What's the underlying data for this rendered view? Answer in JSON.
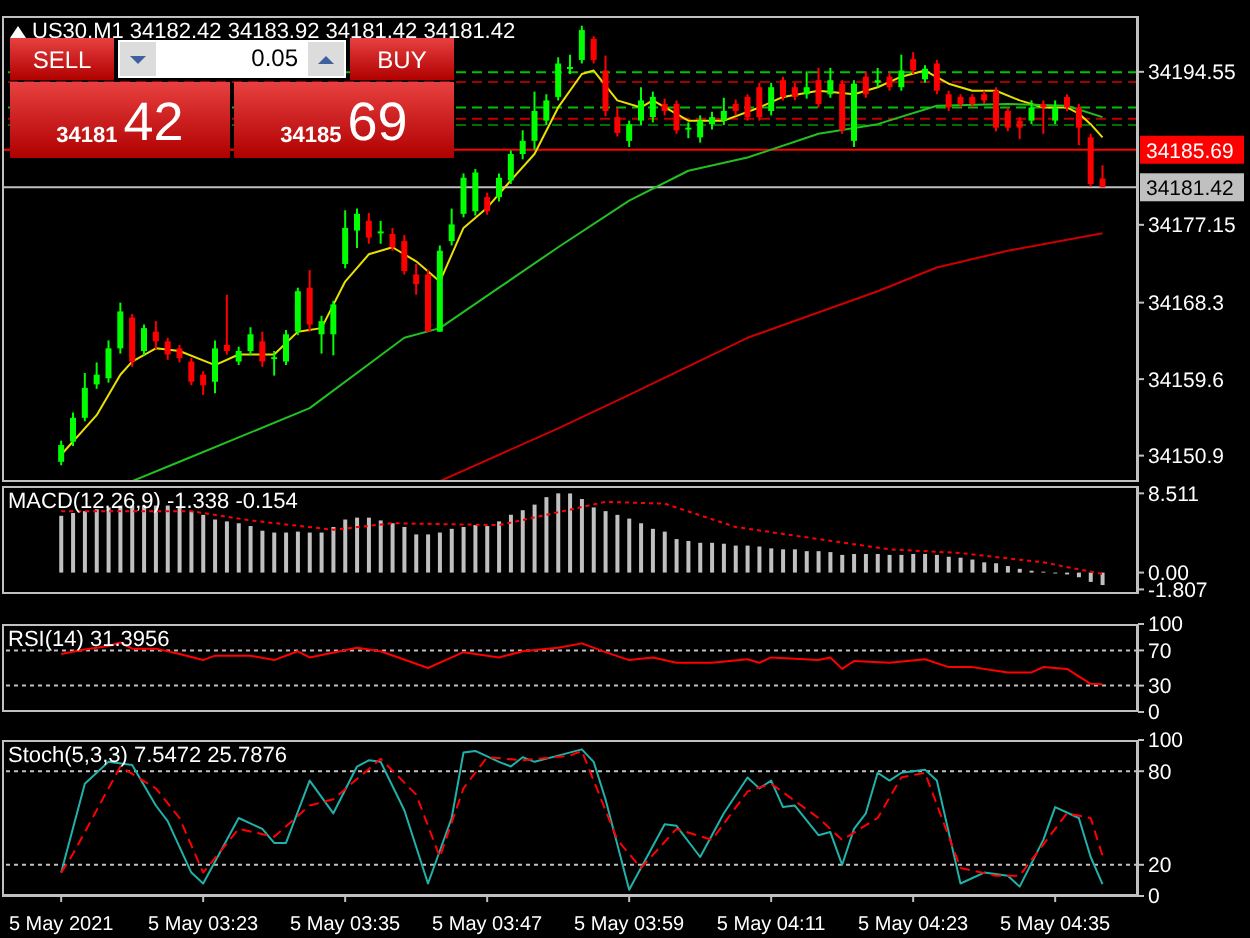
{
  "chart_data": [
    {
      "type": "candlestick",
      "title": "US30,M1 34182.42 34183.92 34181.42 34181.42",
      "x": [
        "2021-05-05T03:11",
        "2021-05-05T03:12",
        "2021-05-05T03:13",
        "2021-05-05T03:14",
        "2021-05-05T03:15",
        "2021-05-05T03:16",
        "2021-05-05T03:17",
        "2021-05-05T03:18",
        "2021-05-05T03:19",
        "2021-05-05T03:20",
        "2021-05-05T03:21",
        "2021-05-05T03:22",
        "2021-05-05T03:23",
        "2021-05-05T03:24",
        "2021-05-05T03:25",
        "2021-05-05T03:26",
        "2021-05-05T03:27",
        "2021-05-05T03:28",
        "2021-05-05T03:29",
        "2021-05-05T03:30",
        "2021-05-05T03:31",
        "2021-05-05T03:32",
        "2021-05-05T03:33",
        "2021-05-05T03:34",
        "2021-05-05T03:35",
        "2021-05-05T03:36",
        "2021-05-05T03:37",
        "2021-05-05T03:38",
        "2021-05-05T03:39",
        "2021-05-05T03:40",
        "2021-05-05T03:41",
        "2021-05-05T03:42",
        "2021-05-05T03:43",
        "2021-05-05T03:44",
        "2021-05-05T03:45",
        "2021-05-05T03:46",
        "2021-05-05T03:47",
        "2021-05-05T03:48",
        "2021-05-05T03:49",
        "2021-05-05T03:50",
        "2021-05-05T03:51",
        "2021-05-05T03:52",
        "2021-05-05T03:53",
        "2021-05-05T03:54",
        "2021-05-05T03:55",
        "2021-05-05T03:56",
        "2021-05-05T03:57",
        "2021-05-05T03:58",
        "2021-05-05T03:59",
        "2021-05-05T04:00",
        "2021-05-05T04:01",
        "2021-05-05T04:02",
        "2021-05-05T04:03",
        "2021-05-05T04:04",
        "2021-05-05T04:05",
        "2021-05-05T04:06",
        "2021-05-05T04:07",
        "2021-05-05T04:08",
        "2021-05-05T04:09",
        "2021-05-05T04:10",
        "2021-05-05T04:11",
        "2021-05-05T04:12",
        "2021-05-05T04:13",
        "2021-05-05T04:14",
        "2021-05-05T04:15",
        "2021-05-05T04:16",
        "2021-05-05T04:17",
        "2021-05-05T04:18",
        "2021-05-05T04:19",
        "2021-05-05T04:20",
        "2021-05-05T04:21",
        "2021-05-05T04:22",
        "2021-05-05T04:23",
        "2021-05-05T04:24",
        "2021-05-05T04:25",
        "2021-05-05T04:26",
        "2021-05-05T04:27",
        "2021-05-05T04:28",
        "2021-05-05T04:29",
        "2021-05-05T04:30",
        "2021-05-05T04:31",
        "2021-05-05T04:32",
        "2021-05-05T04:33",
        "2021-05-05T04:34",
        "2021-05-05T04:35",
        "2021-05-05T04:36",
        "2021-05-05T04:37",
        "2021-05-05T04:38",
        "2021-05-05T04:39"
      ],
      "ohlc": [
        [
          34150.2,
          34152.6,
          34149.8,
          34152.1
        ],
        [
          34152.5,
          34155.8,
          34152.0,
          34155.2
        ],
        [
          34155.2,
          34160.3,
          34154.8,
          34158.6
        ],
        [
          34159.0,
          34161.5,
          34158.5,
          34160.1
        ],
        [
          34159.7,
          34164.0,
          34159.2,
          34163.1
        ],
        [
          34163.1,
          34168.3,
          34162.5,
          34167.3
        ],
        [
          34166.6,
          34167.0,
          34161.0,
          34161.6
        ],
        [
          34162.8,
          34165.8,
          34162.3,
          34165.4
        ],
        [
          34165.0,
          34166.2,
          34163.0,
          34163.9
        ],
        [
          34163.9,
          34164.3,
          34161.8,
          34162.4
        ],
        [
          34163.1,
          34163.5,
          34161.5,
          34162.0
        ],
        [
          34161.6,
          34162.0,
          34158.9,
          34159.3
        ],
        [
          34160.1,
          34160.5,
          34157.8,
          34158.9
        ],
        [
          34159.3,
          34164.0,
          34158.0,
          34163.1
        ],
        [
          34163.5,
          34169.2,
          34162.4,
          34162.8
        ],
        [
          34161.6,
          34163.3,
          34161.2,
          34162.8
        ],
        [
          34162.8,
          34165.5,
          34162.3,
          34164.7
        ],
        [
          34163.9,
          34165.0,
          34161.0,
          34161.6
        ],
        [
          34162.0,
          34162.8,
          34160.0,
          34162.1
        ],
        [
          34161.6,
          34165.2,
          34161.2,
          34164.7
        ],
        [
          34165.0,
          34170.0,
          34164.6,
          34169.6
        ],
        [
          34170.0,
          34172.0,
          34165.0,
          34165.8
        ],
        [
          34164.7,
          34166.8,
          34162.5,
          34166.2
        ],
        [
          34164.7,
          34168.5,
          34162.3,
          34168.1
        ],
        [
          34172.7,
          34178.8,
          34172.2,
          34176.8
        ],
        [
          34176.5,
          34179.0,
          34174.5,
          34178.4
        ],
        [
          34177.6,
          34178.5,
          34175.0,
          34175.7
        ],
        [
          34176.3,
          34177.6,
          34175.0,
          34176.4
        ],
        [
          34176.1,
          34176.8,
          34174.2,
          34174.6
        ],
        [
          34175.3,
          34176.0,
          34171.5,
          34171.9
        ],
        [
          34171.5,
          34172.7,
          34169.2,
          34170.4
        ],
        [
          34171.5,
          34172.0,
          34165.0,
          34165.0
        ],
        [
          34165.0,
          34174.8,
          34165.0,
          34174.2
        ],
        [
          34175.3,
          34179.0,
          34174.8,
          34177.2
        ],
        [
          34178.4,
          34183.0,
          34178.0,
          34182.5
        ],
        [
          34178.7,
          34183.5,
          34178.2,
          34183.1
        ],
        [
          34180.3,
          34180.8,
          34178.3,
          34178.7
        ],
        [
          34180.3,
          34183.0,
          34179.8,
          34182.5
        ],
        [
          34182.2,
          34185.6,
          34181.8,
          34185.2
        ],
        [
          34185.2,
          34187.9,
          34184.6,
          34186.7
        ],
        [
          34186.7,
          34192.3,
          34185.7,
          34190.1
        ],
        [
          34189.0,
          34192.0,
          34188.5,
          34191.3
        ],
        [
          34191.7,
          34196.2,
          34191.3,
          34195.5
        ],
        [
          34195.0,
          34196.5,
          34194.3,
          34195.1
        ],
        [
          34195.9,
          34199.8,
          34195.5,
          34199.3
        ],
        [
          34198.3,
          34198.6,
          34195.5,
          34195.9
        ],
        [
          34194.7,
          34196.4,
          34189.5,
          34190.1
        ],
        [
          34189.4,
          34190.5,
          34187.2,
          34187.6
        ],
        [
          34186.7,
          34189.0,
          34186.0,
          34188.6
        ],
        [
          34189.0,
          34192.8,
          34188.5,
          34191.3
        ],
        [
          34189.4,
          34192.3,
          34188.8,
          34191.7
        ],
        [
          34190.9,
          34191.5,
          34189.6,
          34190.1
        ],
        [
          34190.9,
          34191.3,
          34187.5,
          34187.9
        ],
        [
          34188.0,
          34188.8,
          34187.0,
          34188.2
        ],
        [
          34187.1,
          34189.6,
          34186.5,
          34189.0
        ],
        [
          34188.6,
          34190.0,
          34188.0,
          34189.4
        ],
        [
          34189.0,
          34191.6,
          34188.5,
          34190.1
        ],
        [
          34190.9,
          34191.4,
          34189.6,
          34190.1
        ],
        [
          34191.7,
          34192.0,
          34189.0,
          34189.4
        ],
        [
          34192.8,
          34193.3,
          34189.0,
          34189.4
        ],
        [
          34190.1,
          34193.3,
          34189.6,
          34192.8
        ],
        [
          34193.6,
          34194.0,
          34191.3,
          34191.7
        ],
        [
          34192.8,
          34193.3,
          34191.3,
          34191.7
        ],
        [
          34192.0,
          34194.6,
          34191.5,
          34192.8
        ],
        [
          34193.6,
          34195.0,
          34190.5,
          34190.9
        ],
        [
          34192.0,
          34195.0,
          34191.6,
          34193.6
        ],
        [
          34193.2,
          34193.6,
          34187.5,
          34187.9
        ],
        [
          34186.7,
          34193.6,
          34186.0,
          34193.2
        ],
        [
          34194.0,
          34194.6,
          34191.6,
          34192.0
        ],
        [
          34193.3,
          34195.0,
          34192.8,
          34193.6
        ],
        [
          34194.0,
          34194.5,
          34192.4,
          34192.8
        ],
        [
          34192.8,
          34196.5,
          34192.4,
          34194.7
        ],
        [
          34196.0,
          34196.8,
          34194.3,
          34194.7
        ],
        [
          34193.7,
          34195.3,
          34193.3,
          34194.9
        ],
        [
          34195.5,
          34195.9,
          34192.0,
          34192.4
        ],
        [
          34192.0,
          34192.4,
          34190.1,
          34190.5
        ],
        [
          34191.7,
          34192.0,
          34190.5,
          34190.9
        ],
        [
          34191.7,
          34192.0,
          34190.5,
          34190.9
        ],
        [
          34192.0,
          34192.4,
          34190.9,
          34191.3
        ],
        [
          34192.4,
          34192.8,
          34187.8,
          34188.2
        ],
        [
          34190.1,
          34190.5,
          34187.8,
          34188.2
        ],
        [
          34189.0,
          34189.4,
          34186.9,
          34188.2
        ],
        [
          34189.0,
          34191.3,
          34188.6,
          34190.5
        ],
        [
          34190.9,
          34191.3,
          34187.5,
          34190.5
        ],
        [
          34189.0,
          34191.3,
          34188.6,
          34190.5
        ],
        [
          34191.7,
          34192.0,
          34190.1,
          34190.5
        ],
        [
          34190.5,
          34190.9,
          34186.2,
          34188.2
        ],
        [
          34187.1,
          34187.5,
          34181.5,
          34181.8
        ],
        [
          34182.42,
          34183.92,
          34181.42,
          34181.42
        ]
      ],
      "colors": [
        "#00ff00",
        "#00ff00",
        "#00ff00",
        "#00ff00",
        "#00ff00",
        "#00ff00",
        "#ff0000",
        "#00ff00",
        "#ff0000",
        "#ff0000",
        "#ff0000",
        "#ff0000",
        "#ff0000",
        "#00ff00",
        "#ff0000",
        "#00ff00",
        "#00ff00",
        "#ff0000",
        "#00ff00",
        "#00ff00",
        "#00ff00",
        "#ff0000",
        "#00ff00",
        "#00ff00",
        "#00ff00",
        "#00ff00",
        "#ff0000",
        "#00ff00",
        "#ff0000",
        "#ff0000",
        "#ff0000",
        "#ff0000",
        "#00ff00",
        "#00ff00",
        "#00ff00",
        "#00ff00",
        "#ff0000",
        "#00ff00",
        "#00ff00",
        "#00ff00",
        "#00ff00",
        "#00ff00",
        "#00ff00",
        "#00ff00",
        "#00ff00",
        "#ff0000",
        "#ff0000",
        "#ff0000",
        "#00ff00",
        "#00ff00",
        "#00ff00",
        "#ff0000",
        "#ff0000",
        "#00ff00",
        "#00ff00",
        "#00ff00",
        "#00ff00",
        "#ff0000",
        "#ff0000",
        "#ff0000",
        "#00ff00",
        "#ff0000",
        "#ff0000",
        "#00ff00",
        "#ff0000",
        "#00ff00",
        "#ff0000",
        "#00ff00",
        "#ff0000",
        "#00ff00",
        "#ff0000",
        "#00ff00",
        "#ff0000",
        "#00ff00",
        "#ff0000",
        "#ff0000",
        "#ff0000",
        "#ff0000",
        "#ff0000",
        "#ff0000",
        "#ff0000",
        "#ff0000",
        "#00ff00",
        "#ff0000",
        "#00ff00",
        "#ff0000",
        "#ff0000",
        "#ff0000",
        "#ff0000"
      ],
      "series": [
        {
          "type": "line",
          "color": "#e8e000",
          "x": [
            "2021-05-05T03:11",
            "2021-05-05T03:14",
            "2021-05-05T03:16",
            "2021-05-05T03:17",
            "2021-05-05T03:19",
            "2021-05-05T03:21",
            "2021-05-05T03:24",
            "2021-05-05T03:26",
            "2021-05-05T03:29",
            "2021-05-05T03:31",
            "2021-05-05T03:33",
            "2021-05-05T03:35",
            "2021-05-05T03:37",
            "2021-05-05T03:39",
            "2021-05-05T03:41",
            "2021-05-05T03:43",
            "2021-05-05T03:45",
            "2021-05-05T03:47",
            "2021-05-05T03:49",
            "2021-05-05T03:51",
            "2021-05-05T03:53",
            "2021-05-05T03:55",
            "2021-05-05T03:56",
            "2021-05-05T03:58",
            "2021-05-05T04:00",
            "2021-05-05T04:01",
            "2021-05-05T04:04",
            "2021-05-05T04:07",
            "2021-05-05T04:10",
            "2021-05-05T04:12",
            "2021-05-05T04:15",
            "2021-05-05T04:18",
            "2021-05-05T04:20",
            "2021-05-05T04:22",
            "2021-05-05T04:24",
            "2021-05-05T04:26",
            "2021-05-05T04:28",
            "2021-05-05T04:30",
            "2021-05-05T04:32",
            "2021-05-05T04:34",
            "2021-05-05T04:36",
            "2021-05-05T04:37",
            "2021-05-05T04:38",
            "2021-05-05T04:39"
          ],
          "values": [
            34151.0,
            34155.5,
            34160.1,
            34161.6,
            34163.1,
            34162.8,
            34161.2,
            34162.4,
            34162.4,
            34165.0,
            34165.4,
            34170.7,
            34173.8,
            34174.6,
            34173.0,
            34170.7,
            34176.8,
            34179.1,
            34182.2,
            34185.2,
            34190.5,
            34194.3,
            34194.7,
            34191.3,
            34190.5,
            34191.3,
            34189.0,
            34189.0,
            34190.5,
            34191.7,
            34192.4,
            34192.0,
            34192.8,
            34194.0,
            34194.7,
            34193.2,
            34192.4,
            34192.4,
            34191.3,
            34190.5,
            34190.5,
            34189.8,
            34188.6,
            34187.1
          ]
        },
        {
          "type": "line",
          "color": "#22c022",
          "x": [
            "2021-05-05T03:17",
            "2021-05-05T03:21",
            "2021-05-05T03:32",
            "2021-05-05T03:40",
            "2021-05-05T03:43",
            "2021-05-05T03:48",
            "2021-05-05T03:53",
            "2021-05-05T03:59",
            "2021-05-05T04:04",
            "2021-05-05T04:09",
            "2021-05-05T04:15",
            "2021-05-05T04:20",
            "2021-05-05T04:25",
            "2021-05-05T04:31",
            "2021-05-05T04:36",
            "2021-05-05T04:39"
          ],
          "values": [
            34148.0,
            34150.2,
            34156.3,
            34164.3,
            34165.4,
            34170.0,
            34174.6,
            34179.9,
            34183.3,
            34184.8,
            34187.5,
            34188.6,
            34190.7,
            34190.9,
            34190.7,
            34189.4
          ]
        },
        {
          "type": "line",
          "color": "#cc0000",
          "x": [
            "2021-05-05T03:43",
            "2021-05-05T03:53",
            "2021-05-05T03:59",
            "2021-05-05T04:09",
            "2021-05-05T04:20",
            "2021-05-05T04:25",
            "2021-05-05T04:31",
            "2021-05-05T04:39"
          ],
          "values": [
            34148.0,
            34154.0,
            34157.8,
            34164.3,
            34169.6,
            34172.3,
            34174.2,
            34176.2
          ]
        }
      ],
      "xlim": [
        "2021-05-05T03:06",
        "2021-05-05T04:42"
      ],
      "ylim": [
        34147.9,
        34200.9
      ],
      "yticks": [
        34194.55,
        34177.15,
        34168.3,
        34159.6,
        34150.9
      ],
      "tick_labels": "y",
      "marker": "none",
      "ref_lines": [
        {
          "axis": "y",
          "value": 34194.5,
          "color": "#00c000",
          "line_style": "dashed"
        },
        {
          "axis": "y",
          "value": 34193.4,
          "color": "#a00000",
          "line_style": "dashed"
        },
        {
          "axis": "y",
          "value": 34190.5,
          "color": "#00c000",
          "line_style": "dashed"
        },
        {
          "axis": "y",
          "value": 34189.2,
          "color": "#c00000",
          "line_style": "dashed"
        },
        {
          "axis": "y",
          "value": 34188.5,
          "color": "#007000",
          "line_style": "dashed"
        },
        {
          "axis": "y",
          "value": 34185.69,
          "label": "34185.69",
          "color": "#ff0000",
          "line_style": "solid"
        },
        {
          "axis": "y",
          "value": 34181.42,
          "label": "34181.42",
          "color": "#c0c0c0",
          "line_style": "solid"
        }
      ],
      "annotations": [
        "SELL",
        "0.05",
        "BUY",
        "34181",
        "42",
        "34185",
        "69"
      ]
    },
    {
      "type": "bar",
      "title": "MACD(12,26,9) -1.338 -0.154",
      "x": [
        "2021-05-05T03:11",
        "2021-05-05T03:12",
        "2021-05-05T03:13",
        "2021-05-05T03:14",
        "2021-05-05T03:15",
        "2021-05-05T03:16",
        "2021-05-05T03:17",
        "2021-05-05T03:18",
        "2021-05-05T03:19",
        "2021-05-05T03:20",
        "2021-05-05T03:21",
        "2021-05-05T03:22",
        "2021-05-05T03:23",
        "2021-05-05T03:24",
        "2021-05-05T03:25",
        "2021-05-05T03:26",
        "2021-05-05T03:27",
        "2021-05-05T03:28",
        "2021-05-05T03:29",
        "2021-05-05T03:30",
        "2021-05-05T03:31",
        "2021-05-05T03:32",
        "2021-05-05T03:33",
        "2021-05-05T03:34",
        "2021-05-05T03:35",
        "2021-05-05T03:36",
        "2021-05-05T03:37",
        "2021-05-05T03:38",
        "2021-05-05T03:39",
        "2021-05-05T03:40",
        "2021-05-05T03:41",
        "2021-05-05T03:42",
        "2021-05-05T03:43",
        "2021-05-05T03:44",
        "2021-05-05T03:45",
        "2021-05-05T03:46",
        "2021-05-05T03:47",
        "2021-05-05T03:48",
        "2021-05-05T03:49",
        "2021-05-05T03:50",
        "2021-05-05T03:51",
        "2021-05-05T03:52",
        "2021-05-05T03:53",
        "2021-05-05T03:54",
        "2021-05-05T03:55",
        "2021-05-05T03:56",
        "2021-05-05T03:57",
        "2021-05-05T03:58",
        "2021-05-05T03:59",
        "2021-05-05T04:00",
        "2021-05-05T04:01",
        "2021-05-05T04:02",
        "2021-05-05T04:03",
        "2021-05-05T04:04",
        "2021-05-05T04:05",
        "2021-05-05T04:06",
        "2021-05-05T04:07",
        "2021-05-05T04:08",
        "2021-05-05T04:09",
        "2021-05-05T04:10",
        "2021-05-05T04:11",
        "2021-05-05T04:12",
        "2021-05-05T04:13",
        "2021-05-05T04:14",
        "2021-05-05T04:15",
        "2021-05-05T04:16",
        "2021-05-05T04:17",
        "2021-05-05T04:18",
        "2021-05-05T04:19",
        "2021-05-05T04:20",
        "2021-05-05T04:21",
        "2021-05-05T04:22",
        "2021-05-05T04:23",
        "2021-05-05T04:24",
        "2021-05-05T04:25",
        "2021-05-05T04:26",
        "2021-05-05T04:27",
        "2021-05-05T04:28",
        "2021-05-05T04:29",
        "2021-05-05T04:30",
        "2021-05-05T04:31",
        "2021-05-05T04:32",
        "2021-05-05T04:33",
        "2021-05-05T04:34",
        "2021-05-05T04:35",
        "2021-05-05T04:36",
        "2021-05-05T04:37",
        "2021-05-05T04:38",
        "2021-05-05T04:39"
      ],
      "series": [
        {
          "type": "bar",
          "color": "#c0c0c0",
          "values": [
            6.1,
            6.4,
            6.6,
            6.8,
            7.0,
            7.2,
            7.2,
            7.2,
            7.2,
            7.2,
            7.0,
            6.6,
            6.2,
            5.7,
            5.5,
            5.3,
            5.0,
            4.5,
            4.3,
            4.3,
            4.4,
            4.3,
            4.3,
            4.9,
            5.7,
            5.9,
            5.9,
            5.6,
            5.3,
            4.9,
            4.1,
            4.1,
            4.3,
            4.7,
            4.9,
            5.1,
            5.0,
            5.5,
            6.2,
            6.7,
            7.3,
            8.1,
            8.511,
            8.5,
            7.9,
            7.0,
            6.6,
            6.2,
            5.8,
            5.3,
            4.7,
            4.4,
            3.6,
            3.4,
            3.2,
            3.2,
            3.1,
            2.9,
            2.9,
            2.8,
            2.6,
            2.5,
            2.5,
            2.3,
            2.3,
            2.2,
            1.9,
            2.0,
            2.0,
            2.0,
            1.9,
            1.9,
            2.0,
            2.0,
            1.9,
            1.7,
            1.6,
            1.4,
            1.1,
            1.0,
            0.7,
            0.4,
            0.2,
            0.1,
            -0.1,
            -0.2,
            -0.5,
            -1.0,
            -1.338
          ]
        },
        {
          "type": "line",
          "color": "#ff0000",
          "line_style": "dotted",
          "x": [
            "2021-05-05T03:11",
            "2021-05-05T03:22",
            "2021-05-05T03:27",
            "2021-05-05T03:34",
            "2021-05-05T03:39",
            "2021-05-05T03:48",
            "2021-05-05T03:52",
            "2021-05-05T03:57",
            "2021-05-05T04:02",
            "2021-05-05T04:08",
            "2021-05-05T04:15",
            "2021-05-05T04:21",
            "2021-05-05T04:27",
            "2021-05-05T04:34",
            "2021-05-05T04:39"
          ],
          "values": [
            6.6,
            6.6,
            5.6,
            4.6,
            5.3,
            5.1,
            6.2,
            7.6,
            7.4,
            4.9,
            3.6,
            2.5,
            2.1,
            1.1,
            -0.154
          ]
        }
      ],
      "xlim": [
        "2021-05-05T03:06",
        "2021-05-05T04:42"
      ],
      "ylim": [
        -2.3,
        9.3
      ],
      "yticks": [
        8.511,
        {
          "value": 0,
          "label": "0.00"
        },
        -1.807
      ],
      "tick_labels": "y",
      "marker": "none"
    },
    {
      "type": "line",
      "title": "RSI(14) 31.3956",
      "series": [
        {
          "color": "#ff0000",
          "x": [
            "2021-05-05T03:11",
            "2021-05-05T03:13",
            "2021-05-05T03:15",
            "2021-05-05T03:16",
            "2021-05-05T03:17",
            "2021-05-05T03:19",
            "2021-05-05T03:21",
            "2021-05-05T03:23",
            "2021-05-05T03:24",
            "2021-05-05T03:27",
            "2021-05-05T03:29",
            "2021-05-05T03:31",
            "2021-05-05T03:32",
            "2021-05-05T03:36",
            "2021-05-05T03:38",
            "2021-05-05T03:42",
            "2021-05-05T03:44",
            "2021-05-05T03:45",
            "2021-05-05T03:48",
            "2021-05-05T03:50",
            "2021-05-05T03:53",
            "2021-05-05T03:55",
            "2021-05-05T03:57",
            "2021-05-05T03:59",
            "2021-05-05T04:01",
            "2021-05-05T04:03",
            "2021-05-05T04:06",
            "2021-05-05T04:09",
            "2021-05-05T04:10",
            "2021-05-05T04:11",
            "2021-05-05T04:15",
            "2021-05-05T04:16",
            "2021-05-05T04:17",
            "2021-05-05T04:18",
            "2021-05-05T04:21",
            "2021-05-05T04:24",
            "2021-05-05T04:26",
            "2021-05-05T04:28",
            "2021-05-05T04:31",
            "2021-05-05T04:33",
            "2021-05-05T04:34",
            "2021-05-05T04:36",
            "2021-05-05T04:38",
            "2021-05-05T04:39"
          ],
          "values": [
            66,
            71,
            75,
            79,
            72,
            72,
            66,
            59,
            64,
            64,
            59,
            69,
            62,
            73,
            69,
            50,
            62,
            68,
            62,
            69,
            73,
            78,
            68,
            59,
            62,
            56,
            56,
            60,
            56,
            62,
            59,
            62,
            49,
            58,
            56,
            60,
            51,
            51,
            45,
            45,
            51,
            49,
            32,
            31.3956
          ]
        }
      ],
      "xlim": [
        "2021-05-05T03:06",
        "2021-05-05T04:42"
      ],
      "ylim": [
        0,
        100
      ],
      "yticks": [
        100,
        70,
        30,
        0
      ],
      "tick_labels": "y",
      "marker": "none",
      "ref_lines": [
        {
          "axis": "y",
          "value": 70,
          "color": "#c0c0c0",
          "line_style": "dotted"
        },
        {
          "axis": "y",
          "value": 30,
          "color": "#c0c0c0",
          "line_style": "dotted"
        }
      ]
    },
    {
      "type": "line",
      "title": "Stoch(5,3,3) 7.5472 25.7876",
      "series": [
        {
          "color": "#20b2aa",
          "x": [
            "2021-05-05T03:11",
            "2021-05-05T03:13",
            "2021-05-05T03:15",
            "2021-05-05T03:17",
            "2021-05-05T03:19",
            "2021-05-05T03:20",
            "2021-05-05T03:22",
            "2021-05-05T03:23",
            "2021-05-05T03:26",
            "2021-05-05T03:28",
            "2021-05-05T03:29",
            "2021-05-05T03:30",
            "2021-05-05T03:32",
            "2021-05-05T03:34",
            "2021-05-05T03:36",
            "2021-05-05T03:37",
            "2021-05-05T03:38",
            "2021-05-05T03:40",
            "2021-05-05T03:42",
            "2021-05-05T03:44",
            "2021-05-05T03:45",
            "2021-05-05T03:46",
            "2021-05-05T03:48",
            "2021-05-05T03:49",
            "2021-05-05T03:50",
            "2021-05-05T03:51",
            "2021-05-05T03:53",
            "2021-05-05T03:55",
            "2021-05-05T03:56",
            "2021-05-05T03:57",
            "2021-05-05T03:59",
            "2021-05-05T04:02",
            "2021-05-05T04:03",
            "2021-05-05T04:05",
            "2021-05-05T04:07",
            "2021-05-05T04:09",
            "2021-05-05T04:10",
            "2021-05-05T04:11",
            "2021-05-05T04:12",
            "2021-05-05T04:13",
            "2021-05-05T04:15",
            "2021-05-05T04:16",
            "2021-05-05T04:17",
            "2021-05-05T04:18",
            "2021-05-05T04:19",
            "2021-05-05T04:20",
            "2021-05-05T04:21",
            "2021-05-05T04:22",
            "2021-05-05T04:24",
            "2021-05-05T04:25",
            "2021-05-05T04:27",
            "2021-05-05T04:29",
            "2021-05-05T04:31",
            "2021-05-05T04:32",
            "2021-05-05T04:34",
            "2021-05-05T04:35",
            "2021-05-05T04:37",
            "2021-05-05T04:38",
            "2021-05-05T04:39"
          ],
          "values": [
            15,
            72,
            86,
            84,
            58,
            48,
            15,
            8,
            50,
            43,
            34,
            34,
            74,
            53,
            83,
            87,
            86,
            55,
            8,
            50,
            92,
            93,
            86,
            83,
            89,
            86,
            90,
            94,
            86,
            62,
            4,
            46,
            45,
            25,
            53,
            76,
            69,
            74,
            57,
            58,
            39,
            41,
            20,
            43,
            53,
            79,
            74,
            79,
            81,
            74,
            8,
            15,
            13,
            6,
            36,
            57,
            50,
            25,
            7.5472
          ]
        },
        {
          "color": "#ff0000",
          "line_style": "dashed",
          "x": [
            "2021-05-05T03:11",
            "2021-05-05T03:12",
            "2021-05-05T03:15",
            "2021-05-05T03:16",
            "2021-05-05T03:19",
            "2021-05-05T03:21",
            "2021-05-05T03:23",
            "2021-05-05T03:26",
            "2021-05-05T03:29",
            "2021-05-05T03:32",
            "2021-05-05T03:34",
            "2021-05-05T03:38",
            "2021-05-05T03:41",
            "2021-05-05T03:43",
            "2021-05-05T03:45",
            "2021-05-05T03:47",
            "2021-05-05T03:50",
            "2021-05-05T03:54",
            "2021-05-05T03:55",
            "2021-05-05T03:58",
            "2021-05-05T04:00",
            "2021-05-05T04:03",
            "2021-05-05T04:06",
            "2021-05-05T04:09",
            "2021-05-05T04:11",
            "2021-05-05T04:15",
            "2021-05-05T04:17",
            "2021-05-05T04:20",
            "2021-05-05T04:22",
            "2021-05-05T04:24",
            "2021-05-05T04:27",
            "2021-05-05T04:30",
            "2021-05-05T04:32",
            "2021-05-05T04:36",
            "2021-05-05T04:38",
            "2021-05-05T04:39"
          ],
          "values": [
            15,
            27,
            69,
            83,
            69,
            50,
            15,
            43,
            38,
            58,
            62,
            88,
            65,
            25,
            69,
            89,
            87,
            90,
            93,
            36,
            18,
            43,
            36,
            67,
            72,
            50,
            36,
            50,
            76,
            79,
            18,
            13,
            13,
            53,
            50,
            25.7876
          ]
        }
      ],
      "xlim": [
        "2021-05-05T03:06",
        "2021-05-05T04:42"
      ],
      "ylim": [
        0,
        100
      ],
      "yticks": [
        100,
        80,
        20,
        0
      ],
      "marker": "none",
      "xticks": [
        {
          "value": "2021-05-05T03:11",
          "label": "5 May 2021"
        },
        {
          "value": "2021-05-05T03:23",
          "label": "5 May 03:23"
        },
        {
          "value": "2021-05-05T03:35",
          "label": "5 May 03:35"
        },
        {
          "value": "2021-05-05T03:47",
          "label": "5 May 03:47"
        },
        {
          "value": "2021-05-05T03:59",
          "label": "5 May 03:59"
        },
        {
          "value": "2021-05-05T04:11",
          "label": "5 May 04:11"
        },
        {
          "value": "2021-05-05T04:23",
          "label": "5 May 04:23"
        },
        {
          "value": "2021-05-05T04:35",
          "label": "5 May 04:35"
        }
      ],
      "ref_lines": [
        {
          "axis": "y",
          "value": 80,
          "color": "#c0c0c0",
          "line_style": "dotted"
        },
        {
          "axis": "y",
          "value": 20,
          "color": "#c0c0c0",
          "line_style": "dotted"
        }
      ]
    }
  ]
}
